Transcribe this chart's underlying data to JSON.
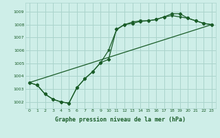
{
  "title": "Graphe pression niveau de la mer (hPa)",
  "bg_color": "#ceeee8",
  "grid_color": "#aad4cc",
  "line_color": "#1a5c28",
  "xlim": [
    -0.5,
    23.5
  ],
  "ylim": [
    1001.5,
    1009.7
  ],
  "yticks": [
    1002,
    1003,
    1004,
    1005,
    1006,
    1007,
    1008,
    1009
  ],
  "xticks": [
    0,
    1,
    2,
    3,
    4,
    5,
    6,
    7,
    8,
    9,
    10,
    11,
    12,
    13,
    14,
    15,
    16,
    17,
    18,
    19,
    20,
    21,
    22,
    23
  ],
  "series1_x": [
    0,
    1,
    2,
    3,
    4,
    5,
    6,
    7,
    8,
    9,
    10,
    11,
    12,
    13,
    14,
    15,
    16,
    17,
    18,
    19,
    20,
    21,
    22,
    23
  ],
  "series1_y": [
    1003.5,
    1003.3,
    1002.6,
    1002.2,
    1002.0,
    1001.9,
    1003.1,
    1003.8,
    1004.35,
    1005.05,
    1005.3,
    1007.65,
    1008.0,
    1008.1,
    1008.25,
    1008.3,
    1008.4,
    1008.6,
    1008.85,
    1008.85,
    1008.5,
    1008.3,
    1008.1,
    1008.0
  ],
  "series2_x": [
    0,
    1,
    2,
    3,
    4,
    5,
    6,
    7,
    8,
    9,
    10,
    11,
    12,
    13,
    14,
    15,
    16,
    17,
    18,
    19,
    20,
    21,
    22,
    23
  ],
  "series2_y": [
    1003.5,
    1003.3,
    1002.6,
    1002.2,
    1002.0,
    1001.9,
    1003.1,
    1003.8,
    1004.35,
    1005.05,
    1006.0,
    1007.6,
    1008.0,
    1008.2,
    1008.3,
    1008.3,
    1008.4,
    1008.6,
    1008.7,
    1008.6,
    1008.5,
    1008.3,
    1008.1,
    1008.0
  ],
  "series3_x": [
    0,
    23
  ],
  "series3_y": [
    1003.5,
    1008.0
  ],
  "figsize": [
    3.2,
    2.0
  ],
  "dpi": 100
}
